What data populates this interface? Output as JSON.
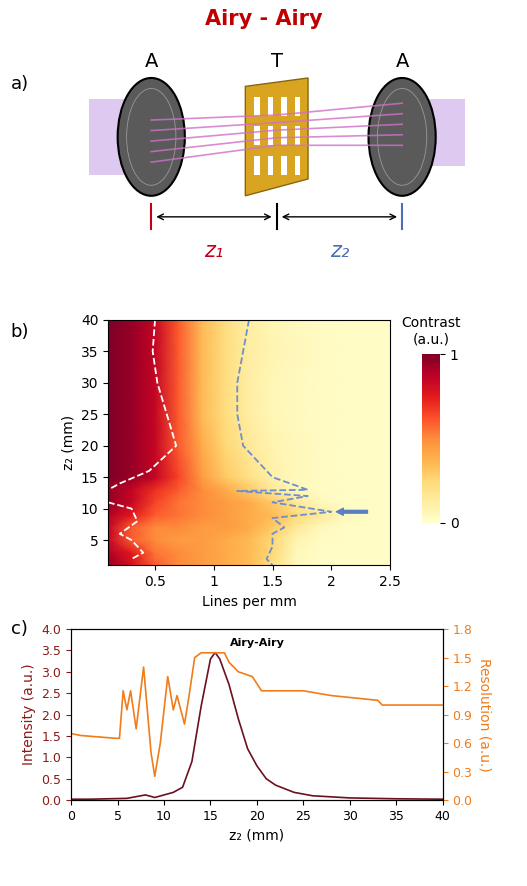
{
  "title": "Airy - Airy",
  "title_color": "#c00000",
  "diagram": {
    "panel_label": "a)",
    "labels": {
      "source": "A",
      "target": "T",
      "detector": "A"
    },
    "distances": [
      {
        "label": "z₁",
        "color": "#c0001a"
      },
      {
        "label": "z₂",
        "color": "#4a6fb5"
      }
    ]
  },
  "chart_data": [
    {
      "type": "heatmap",
      "panel_label": "b)",
      "xlabel": "Lines per mm",
      "ylabel": "z₂ (mm)",
      "xlim": [
        0.1,
        2.5
      ],
      "xticks": [
        0.5,
        1,
        1.5,
        2,
        2.5
      ],
      "ylim": [
        1,
        40
      ],
      "yticks": [
        5,
        10,
        15,
        20,
        25,
        30,
        35,
        40
      ],
      "x": [
        0.1,
        0.3,
        0.5,
        0.7,
        0.9,
        1.1,
        1.3,
        1.5,
        1.7,
        1.9,
        2.1,
        2.3,
        2.5
      ],
      "y": [
        1,
        3,
        5,
        7,
        9,
        11,
        13,
        15,
        20,
        25,
        30,
        35,
        40
      ],
      "cells": [
        [
          0.95,
          0.8,
          0.6,
          0.5,
          0.45,
          0.4,
          0.35,
          0.2,
          0.05,
          0.02,
          0.02,
          0.02,
          0.02
        ],
        [
          0.9,
          0.75,
          0.55,
          0.5,
          0.45,
          0.4,
          0.35,
          0.25,
          0.05,
          0.02,
          0.02,
          0.02,
          0.02
        ],
        [
          0.85,
          0.6,
          0.5,
          0.45,
          0.45,
          0.4,
          0.35,
          0.25,
          0.08,
          0.03,
          0.02,
          0.02,
          0.02
        ],
        [
          0.85,
          0.6,
          0.5,
          0.5,
          0.45,
          0.45,
          0.4,
          0.3,
          0.15,
          0.05,
          0.02,
          0.02,
          0.02
        ],
        [
          0.9,
          0.75,
          0.6,
          0.55,
          0.5,
          0.45,
          0.4,
          0.35,
          0.25,
          0.15,
          0.05,
          0.02,
          0.02
        ],
        [
          0.95,
          0.85,
          0.65,
          0.55,
          0.5,
          0.45,
          0.4,
          0.3,
          0.15,
          0.05,
          0.02,
          0.02,
          0.02
        ],
        [
          0.95,
          0.85,
          0.7,
          0.6,
          0.5,
          0.4,
          0.3,
          0.15,
          0.05,
          0.03,
          0.02,
          0.02,
          0.02
        ],
        [
          1.0,
          0.95,
          0.85,
          0.65,
          0.45,
          0.3,
          0.2,
          0.1,
          0.05,
          0.03,
          0.02,
          0.02,
          0.02
        ],
        [
          1.0,
          0.95,
          0.85,
          0.6,
          0.4,
          0.25,
          0.15,
          0.08,
          0.05,
          0.03,
          0.02,
          0.02,
          0.02
        ],
        [
          1.0,
          0.95,
          0.85,
          0.6,
          0.35,
          0.22,
          0.12,
          0.06,
          0.04,
          0.03,
          0.02,
          0.02,
          0.02
        ],
        [
          1.0,
          0.95,
          0.85,
          0.6,
          0.35,
          0.22,
          0.12,
          0.06,
          0.04,
          0.03,
          0.02,
          0.02,
          0.02
        ],
        [
          1.0,
          0.95,
          0.85,
          0.6,
          0.35,
          0.22,
          0.12,
          0.08,
          0.05,
          0.03,
          0.02,
          0.02,
          0.02
        ],
        [
          1.0,
          0.95,
          0.85,
          0.6,
          0.35,
          0.22,
          0.12,
          0.06,
          0.04,
          0.03,
          0.02,
          0.02,
          0.02
        ]
      ],
      "colorbar": {
        "label": "Contrast (a.u.)",
        "range": [
          0,
          1
        ],
        "ticks": [
          0,
          1
        ]
      },
      "contours": [
        {
          "color": "#ffffff",
          "line_style": "dashed",
          "segments": [
            {
              "x": [
                0.5,
                0.48,
                0.52,
                0.6,
                0.68,
                0.45,
                0.2,
                0.1
              ],
              "y": [
                40,
                35,
                30,
                25,
                20,
                16,
                14,
                13
              ]
            },
            {
              "x": [
                0.1,
                0.3,
                0.35,
                0.2,
                0.3,
                0.4,
                0.3
              ],
              "y": [
                11,
                10,
                8,
                6,
                5,
                3,
                2
              ]
            }
          ]
        },
        {
          "color": "#6b8fd0",
          "line_style": "dashed",
          "segments": [
            {
              "x": [
                1.3,
                1.25,
                1.2,
                1.2,
                1.25,
                1.5,
                1.8,
                1.2,
                1.8,
                1.5,
                2.0,
                1.5,
                1.6,
                1.5,
                1.5,
                1.45,
                1.5
              ],
              "y": [
                40,
                35,
                30,
                25,
                20,
                15,
                13,
                12.8,
                12,
                11,
                9.5,
                8.5,
                7,
                6,
                4,
                2,
                1
              ]
            }
          ]
        }
      ]
    },
    {
      "type": "line",
      "panel_label": "c)",
      "title": "Airy-Airy",
      "xlabel": "z₂ (mm)",
      "ylabel": "Intensity (a.u.)",
      "y2label": "Resolution (a.u.)",
      "xlim": [
        0,
        40
      ],
      "xticks": [
        0,
        5,
        10,
        15,
        20,
        25,
        30,
        35,
        40
      ],
      "ylim": [
        0,
        4
      ],
      "yticks": [
        {
          "value": 0,
          "label": "0.0"
        },
        {
          "value": 0.5,
          "label": "0.5"
        },
        {
          "value": 1,
          "label": "1.0"
        },
        {
          "value": 1.5,
          "label": "1.5"
        },
        {
          "value": 2,
          "label": "2.0"
        },
        {
          "value": 2.5,
          "label": "2.5"
        },
        {
          "value": 3,
          "label": "3.0"
        },
        {
          "value": 3.5,
          "label": "3.5"
        },
        {
          "value": 4,
          "label": "4.0"
        }
      ],
      "y2lim": [
        0,
        1.8
      ],
      "y2ticks": [
        {
          "value": 0,
          "label": "0.0"
        },
        {
          "value": 0.3,
          "label": "0.3"
        },
        {
          "value": 0.6,
          "label": "0.6"
        },
        {
          "value": 0.9,
          "label": "0.9"
        },
        {
          "value": 1.2,
          "label": "1.2"
        },
        {
          "value": 1.5,
          "label": "1.5"
        },
        {
          "value": 1.8,
          "label": "1.8"
        }
      ],
      "series": [
        {
          "name": "Intensity",
          "color": "#6b1020",
          "axis": "y",
          "x": [
            0,
            2,
            4,
            6,
            7,
            8,
            9,
            10,
            11,
            12,
            13,
            14,
            15,
            15.5,
            16,
            17,
            18,
            19,
            20,
            21,
            22,
            24,
            26,
            30,
            35,
            40
          ],
          "values": [
            0.02,
            0.02,
            0.03,
            0.04,
            0.08,
            0.12,
            0.06,
            0.12,
            0.18,
            0.3,
            0.9,
            2.2,
            3.3,
            3.45,
            3.3,
            2.7,
            1.9,
            1.2,
            0.8,
            0.5,
            0.35,
            0.18,
            0.1,
            0.05,
            0.03,
            0.02
          ]
        },
        {
          "name": "Resolution",
          "color": "#f07c1a",
          "axis": "y2",
          "x": [
            0,
            1,
            4.8,
            5.2,
            5.6,
            6.0,
            6.4,
            7.0,
            7.8,
            8.6,
            9.0,
            9.6,
            10.4,
            11.0,
            11.4,
            11.8,
            12.2,
            12.7,
            13.3,
            14,
            15,
            16.5,
            17,
            18,
            19.5,
            20.5,
            25,
            28,
            33,
            33.5,
            40
          ],
          "values": [
            0.7,
            0.68,
            0.65,
            0.65,
            1.15,
            0.95,
            1.15,
            0.75,
            1.4,
            0.5,
            0.25,
            0.6,
            1.3,
            0.95,
            1.1,
            0.95,
            0.8,
            1.1,
            1.5,
            1.55,
            1.55,
            1.55,
            1.45,
            1.35,
            1.3,
            1.15,
            1.15,
            1.1,
            1.05,
            1.0,
            1.0
          ]
        }
      ]
    }
  ]
}
